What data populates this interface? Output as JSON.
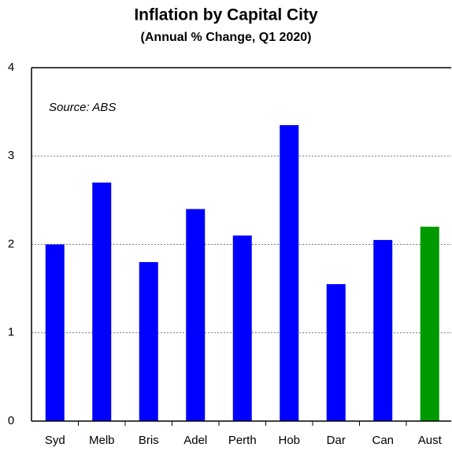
{
  "chart_data": {
    "type": "bar",
    "title": "Inflation by Capital City",
    "subtitle": "(Annual % Change, Q1 2020)",
    "annotation": "Source: ABS",
    "categories": [
      "Syd",
      "Melb",
      "Bris",
      "Adel",
      "Perth",
      "Hob",
      "Dar",
      "Can",
      "Aust"
    ],
    "values": [
      2.0,
      2.7,
      1.8,
      2.4,
      2.1,
      3.35,
      1.55,
      2.05,
      2.2
    ],
    "colors": [
      "#0000ff",
      "#0000ff",
      "#0000ff",
      "#0000ff",
      "#0000ff",
      "#0000ff",
      "#0000ff",
      "#0000ff",
      "#009900"
    ],
    "ylim": [
      0,
      4
    ],
    "yticks": [
      0,
      1,
      2,
      3,
      4
    ],
    "grid": true
  }
}
